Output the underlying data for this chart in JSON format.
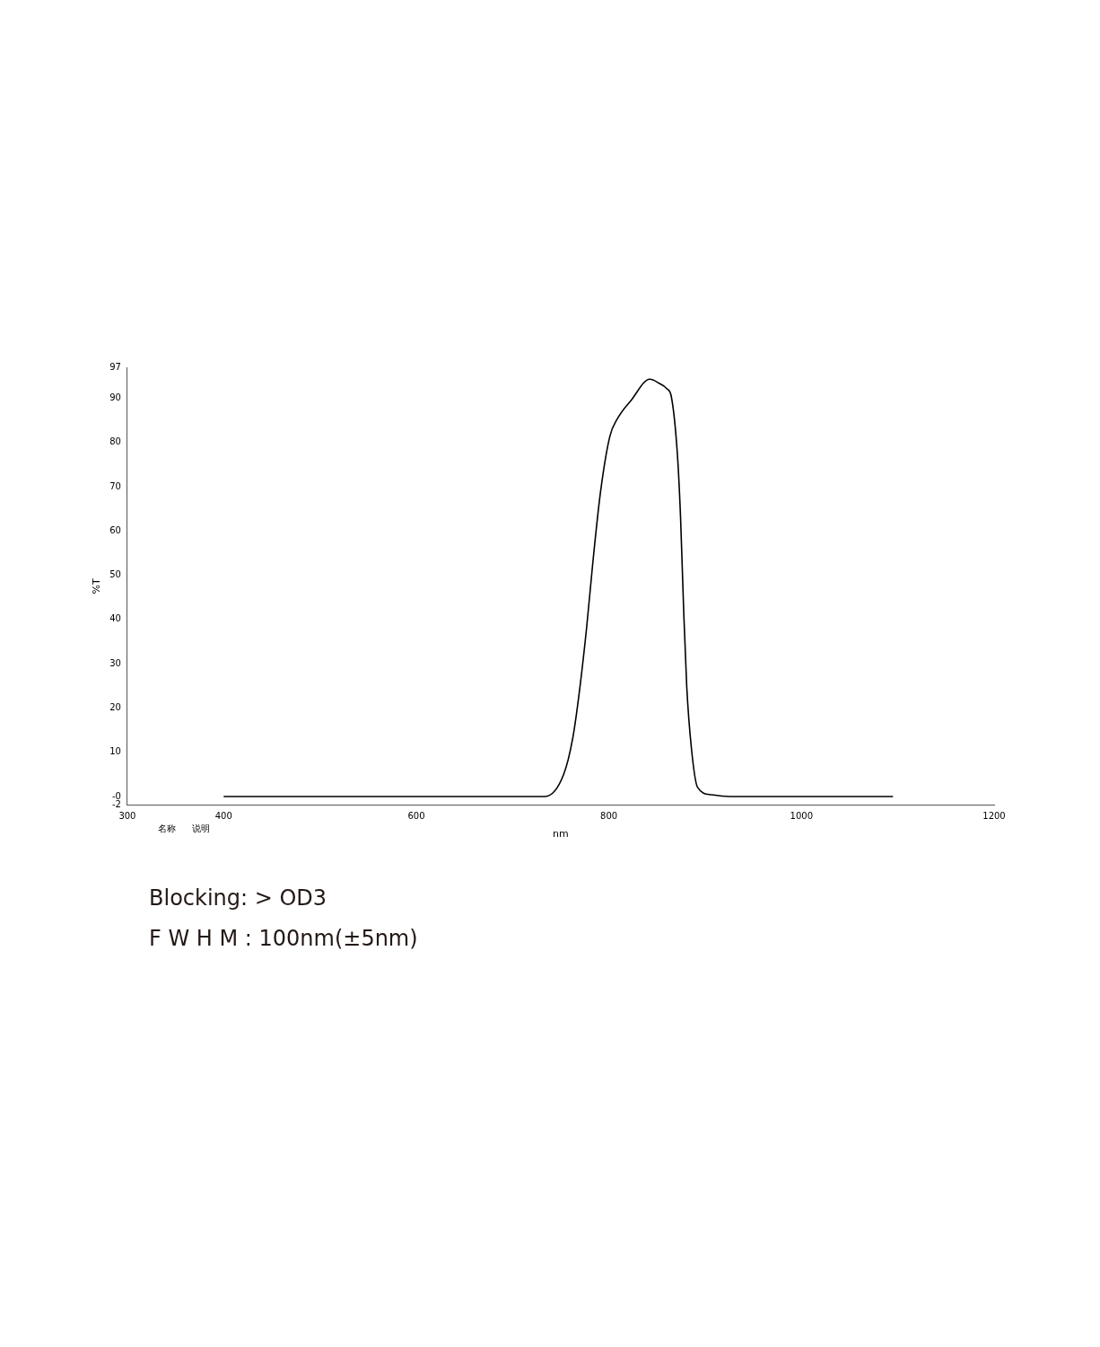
{
  "chart_data": {
    "type": "line",
    "xlabel": "nm",
    "ylabel": "%T",
    "xlim": [
      300,
      1200
    ],
    "xticks": [
      300,
      400,
      600,
      800,
      1000,
      1200
    ],
    "ylim": [
      -2,
      97
    ],
    "yticks": [
      -2,
      {
        "value": 0,
        "label": "-0"
      },
      10,
      20,
      30,
      40,
      50,
      60,
      70,
      80,
      90,
      97
    ],
    "grid": false,
    "legend": false,
    "marker": "none",
    "line_style": "solid",
    "series": [
      {
        "color": "#000000",
        "x": [
          400,
          500,
          600,
          700,
          733.7,
          752.9,
          762.5,
          768.9,
          776.9,
          783.3,
          791.3,
          800.9,
          808.9,
          823.3,
          842.5,
          852.1,
          860.1,
          864.9,
          871.2,
          874.4,
          877.6,
          880.8,
          885.6,
          892,
          906.4,
          925.6,
          1000,
          1095
        ],
        "values": [
          0,
          0,
          0,
          0,
          0,
          4.9,
          13.2,
          22.9,
          38.2,
          52.8,
          68.8,
          81.3,
          85.4,
          89.6,
          94.3,
          93.4,
          92.2,
          90.3,
          77.1,
          63.2,
          42.4,
          25,
          11.1,
          2.1,
          0.4,
          0,
          0,
          0
        ]
      }
    ],
    "annotations": [
      "名称",
      "说明",
      "Blocking:  > OD3",
      "F W H M :  100nm(±5nm)"
    ]
  }
}
